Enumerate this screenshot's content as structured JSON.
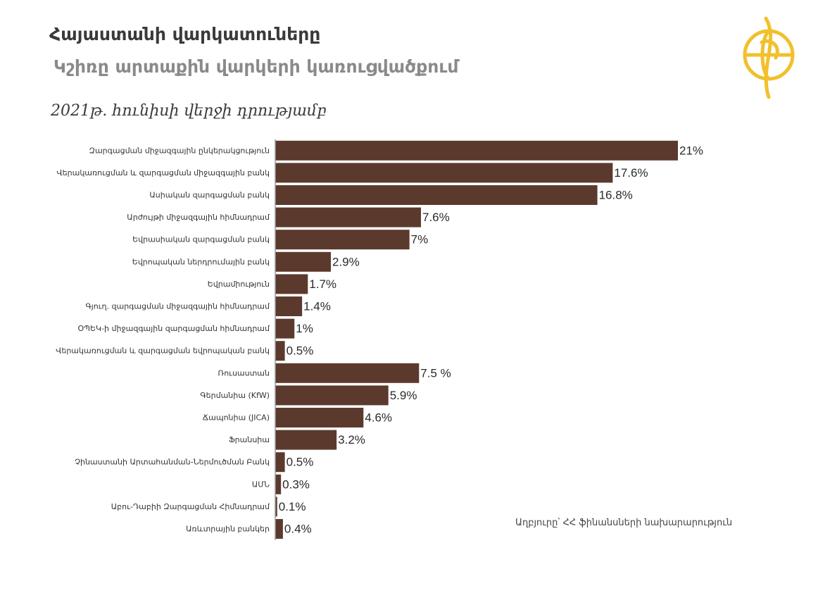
{
  "title": "Հայաստանի վարկատուները",
  "subtitle": "Կշիռը արտաքին վարկերի կառուցվածքում",
  "date_note": "2021թ. հունիսի վերջի դրությամբ",
  "source": "Աղբյուրը՝ ՀՀ ֆինանսների նախարարություն",
  "colors": {
    "bar": "#5b3a2d",
    "axis": "#9a9a9a",
    "logo": "#f2c02c"
  },
  "logo_icon": "golden-emblem-icon",
  "chart_data": {
    "type": "bar",
    "orientation": "horizontal",
    "title": "",
    "xlabel": "",
    "ylabel": "",
    "grid": false,
    "xlim": [
      0,
      21
    ],
    "categories": [
      "Զարգացման միջազգային ընկերակցություն",
      "Վերակառուցման և զարգացման միջազգային բանկ",
      "Ասիական զարգացման բանկ",
      "Արժույթի միջազգային հիմնադրամ",
      "Եվրասիական զարգացման բանկ",
      "Եվրոպական ներդրումային բանկ",
      "Եվրամիություն",
      "Գյուղ. զարգացման միջազգային հիմնադրամ",
      "ՕՊԵԿ-ի միջազգային զարգացման հիմնադրամ",
      "Վերակառուցման և զարգացման եվրոպական բանկ",
      "Ռուսաստան",
      "Գերմանիա (KfW)",
      "Ճապոնիա (JICA)",
      "Ֆրանսիա",
      "Չինաստանի Արտահանման-Ներմուծման Բանկ",
      "ԱՄՆ",
      "Աբու-Դաբիի Զարգացման Հիմնադրամ",
      "Առևտրային բանկեր"
    ],
    "values": [
      21,
      17.6,
      16.8,
      7.6,
      7,
      2.9,
      1.7,
      1.4,
      1,
      0.5,
      7.5,
      5.9,
      4.6,
      3.2,
      0.5,
      0.3,
      0.1,
      0.4
    ],
    "value_labels": [
      "21%",
      "17.6%",
      "16.8%",
      "7.6%",
      "7%",
      "2.9%",
      "1.7%",
      "1.4%",
      "1%",
      "0.5%",
      "7.5 %",
      "5.9%",
      "4.6%",
      "3.2%",
      "0.5%",
      "0.3%",
      "0.1%",
      "0.4%"
    ]
  }
}
